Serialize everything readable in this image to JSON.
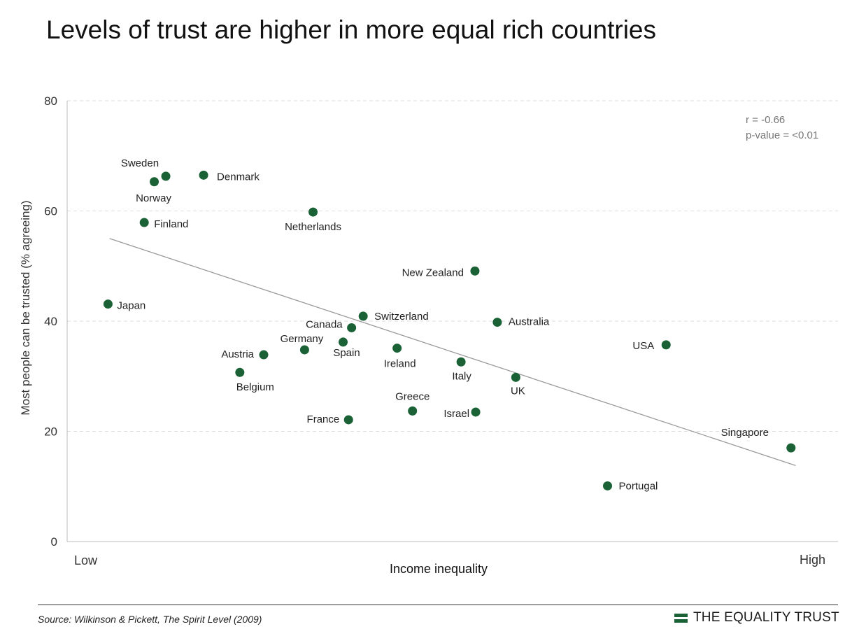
{
  "title": "Levels of trust are higher in more equal rich countries",
  "stats": {
    "r": "r = -0.66",
    "p": "p-value = <0.01"
  },
  "source": "Source: Wilkinson & Pickett, The Spirit Level (2009)",
  "logo": "THE EQUALITY TRUST",
  "colors": {
    "marker": "#1a6235",
    "trend": "#9a9a9a",
    "grid": "#dddddd",
    "logo": "#1a6235"
  },
  "chart_data": {
    "type": "scatter",
    "title": "Levels of trust are higher in more equal rich countries",
    "xlabel": "Income inequality",
    "ylabel": "Most people can be trusted (% agreeing)",
    "x_tick_labels": {
      "low": "Low",
      "high": "High"
    },
    "x_scale": "relative inequality ranking (unnumbered)",
    "xlim": [
      0,
      100
    ],
    "ylim": [
      0,
      80
    ],
    "yticks": [
      0,
      20,
      40,
      60,
      80
    ],
    "grid": "horizontal dashed",
    "trendline": {
      "from": {
        "x": 5.5,
        "y": 55
      },
      "to": {
        "x": 94.5,
        "y": 13.8
      }
    },
    "points": [
      {
        "label": "Sweden",
        "x": 12.8,
        "y": 66.3
      },
      {
        "label": "Norway",
        "x": 11.3,
        "y": 65.3
      },
      {
        "label": "Denmark",
        "x": 17.7,
        "y": 66.5
      },
      {
        "label": "Finland",
        "x": 10.0,
        "y": 57.9
      },
      {
        "label": "Netherlands",
        "x": 31.9,
        "y": 59.8
      },
      {
        "label": "Japan",
        "x": 5.3,
        "y": 43.1
      },
      {
        "label": "New Zealand",
        "x": 52.9,
        "y": 49.1
      },
      {
        "label": "Switzerland",
        "x": 38.4,
        "y": 40.9
      },
      {
        "label": "Canada",
        "x": 36.9,
        "y": 38.8
      },
      {
        "label": "Australia",
        "x": 55.8,
        "y": 39.8
      },
      {
        "label": "Germany",
        "x": 30.8,
        "y": 34.8
      },
      {
        "label": "Spain",
        "x": 35.8,
        "y": 36.2
      },
      {
        "label": "Austria",
        "x": 25.5,
        "y": 33.9
      },
      {
        "label": "Ireland",
        "x": 42.8,
        "y": 35.1
      },
      {
        "label": "USA",
        "x": 77.7,
        "y": 35.7
      },
      {
        "label": "Italy",
        "x": 51.1,
        "y": 32.6
      },
      {
        "label": "Belgium",
        "x": 22.4,
        "y": 30.7
      },
      {
        "label": "UK",
        "x": 58.2,
        "y": 29.8
      },
      {
        "label": "Greece",
        "x": 44.8,
        "y": 23.7
      },
      {
        "label": "Israel",
        "x": 53.0,
        "y": 23.5
      },
      {
        "label": "France",
        "x": 36.5,
        "y": 22.1
      },
      {
        "label": "Singapore",
        "x": 93.9,
        "y": 17.0
      },
      {
        "label": "Portugal",
        "x": 70.1,
        "y": 10.1
      }
    ]
  }
}
